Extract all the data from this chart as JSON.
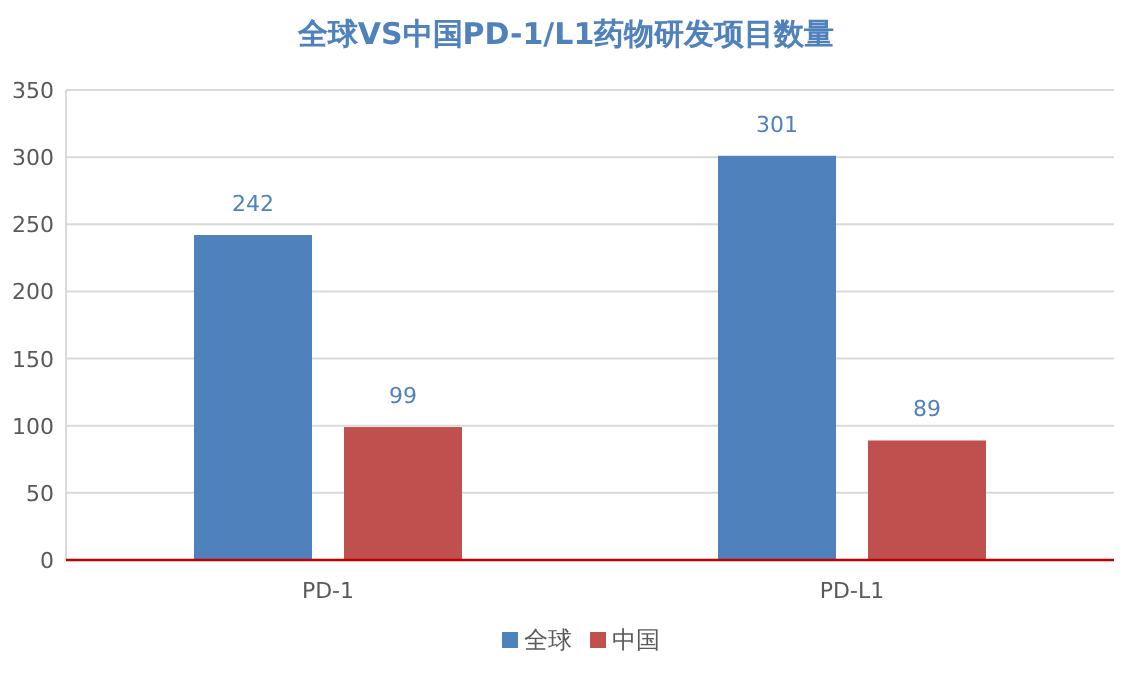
{
  "chart_data": {
    "type": "bar",
    "title": "全球VS中国PD-1/L1药物研发项目数量",
    "categories": [
      "PD-1",
      "PD-L1"
    ],
    "series": [
      {
        "name": "全球",
        "color": "#4f81bd",
        "values": [
          242,
          301
        ]
      },
      {
        "name": "中国",
        "color": "#c0504d",
        "values": [
          99,
          89
        ]
      }
    ],
    "ylim": [
      0,
      350
    ],
    "yticks": [
      0,
      50,
      100,
      150,
      200,
      250,
      300,
      350
    ],
    "grid": "y",
    "legend": "bottom",
    "data_labels": true
  }
}
